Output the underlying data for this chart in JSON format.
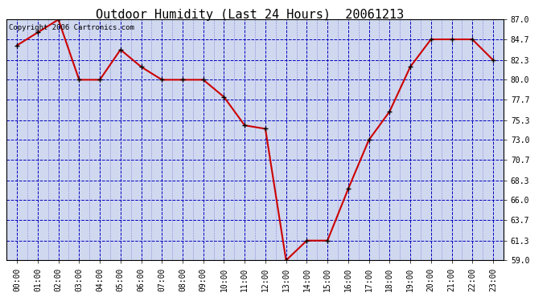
{
  "title": "Outdoor Humidity (Last 24 Hours)  20061213",
  "copyright_text": "Copyright 2006 Cartronics.com",
  "x_labels": [
    "00:00",
    "01:00",
    "02:00",
    "03:00",
    "04:00",
    "05:00",
    "06:00",
    "07:00",
    "08:00",
    "09:00",
    "10:00",
    "11:00",
    "12:00",
    "13:00",
    "14:00",
    "15:00",
    "16:00",
    "17:00",
    "18:00",
    "19:00",
    "20:00",
    "21:00",
    "22:00",
    "23:00"
  ],
  "x_values": [
    0,
    1,
    2,
    3,
    4,
    5,
    6,
    7,
    8,
    9,
    10,
    11,
    12,
    13,
    14,
    15,
    16,
    17,
    18,
    19,
    20,
    21,
    22,
    23
  ],
  "y_values": [
    84.0,
    85.5,
    87.0,
    80.0,
    80.0,
    83.5,
    81.5,
    80.0,
    80.0,
    80.0,
    78.0,
    74.7,
    74.3,
    59.0,
    61.3,
    61.3,
    67.3,
    73.0,
    76.3,
    81.5,
    84.7,
    84.7,
    84.7,
    82.3
  ],
  "y_ticks": [
    59.0,
    61.3,
    63.7,
    66.0,
    68.3,
    70.7,
    73.0,
    75.3,
    77.7,
    80.0,
    82.3,
    84.7,
    87.0
  ],
  "y_min": 59.0,
  "y_max": 87.0,
  "line_color": "#cc0000",
  "marker_color": "#000000",
  "plot_bg_color": "#d0d8f0",
  "outer_bg_color": "#ffffff",
  "grid_color_major": "#0000bb",
  "grid_color_minor": "#6666cc",
  "title_fontsize": 11,
  "tick_fontsize": 7,
  "copyright_fontsize": 6.5
}
